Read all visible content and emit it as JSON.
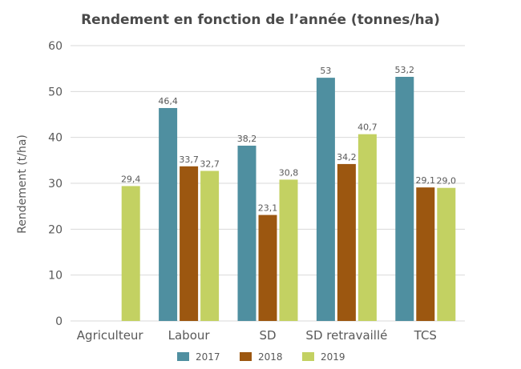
{
  "chart_data": {
    "type": "bar",
    "title": "Rendement en fonction de l’année (tonnes/ha)",
    "ylabel": "Rendement (t/ha)",
    "xlabel": "",
    "ylim": [
      0,
      60
    ],
    "yticks": [
      "0",
      "10",
      "20",
      "30",
      "40",
      "50",
      "60"
    ],
    "grid": true,
    "legend_position": "bottom",
    "categories": [
      "Agriculteur",
      "Labour",
      "SD",
      "SD retravaillé",
      "TCS"
    ],
    "series": [
      {
        "name": "2017",
        "color": "#4f8fa0",
        "values": [
          null,
          46.4,
          38.2,
          53,
          53.2
        ],
        "labels": [
          null,
          "46,4",
          "38,2",
          "53",
          "53,2"
        ]
      },
      {
        "name": "2018",
        "color": "#9c5710",
        "values": [
          null,
          33.7,
          23.1,
          34.2,
          29.1
        ],
        "labels": [
          null,
          "33,7",
          "23,1",
          "34,2",
          "29,1"
        ]
      },
      {
        "name": "2019",
        "color": "#c3d162",
        "values": [
          29.4,
          32.7,
          30.8,
          40.7,
          29.0
        ],
        "labels": [
          "29,4",
          "32,7",
          "30,8",
          "40,7",
          "29,0"
        ]
      }
    ]
  }
}
